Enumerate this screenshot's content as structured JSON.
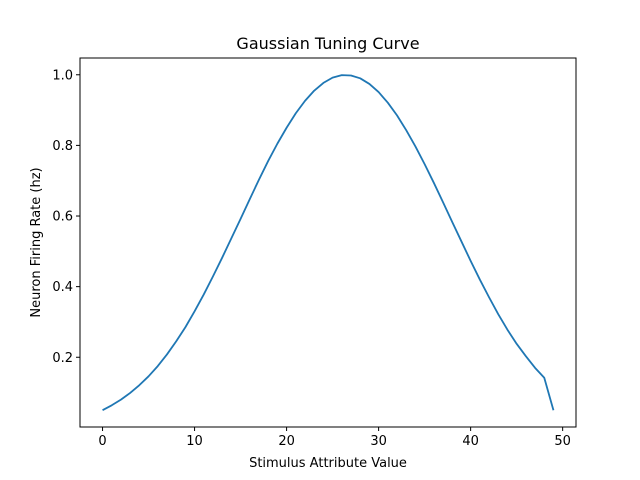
{
  "chart_data": {
    "type": "line",
    "title": "Gaussian Tuning Curve",
    "xlabel": "Stimulus Attribute Value",
    "ylabel": "Neuron Firing Rate (hz)",
    "xlim": [
      -2.45,
      51.45
    ],
    "ylim": [
      0.0025,
      1.0475
    ],
    "xticks": [
      0,
      10,
      20,
      30,
      40,
      50
    ],
    "yticks": [
      0.2,
      0.4,
      0.6,
      0.8,
      1.0
    ],
    "xtick_labels": [
      "0",
      "10",
      "20",
      "30",
      "40",
      "50"
    ],
    "ytick_labels": [
      "0.2",
      "0.4",
      "0.6",
      "0.8",
      "1.0"
    ],
    "grid": false,
    "legend": "none",
    "series": [
      {
        "color": "#1f77b4",
        "x": [
          0,
          1,
          2,
          3,
          4,
          5,
          6,
          7,
          8,
          9,
          10,
          11,
          12,
          13,
          14,
          15,
          16,
          17,
          18,
          19,
          20,
          21,
          22,
          23,
          24,
          25,
          26,
          27,
          28,
          29,
          30,
          31,
          32,
          33,
          34,
          35,
          36,
          37,
          38,
          39,
          40,
          41,
          42,
          43,
          44,
          45,
          46,
          47,
          48,
          49
        ],
        "y": [
          0.05,
          0.064,
          0.08,
          0.099,
          0.121,
          0.146,
          0.175,
          0.208,
          0.245,
          0.285,
          0.33,
          0.378,
          0.429,
          0.482,
          0.537,
          0.592,
          0.648,
          0.703,
          0.756,
          0.805,
          0.85,
          0.891,
          0.926,
          0.955,
          0.977,
          0.992,
          0.999,
          0.998,
          0.99,
          0.974,
          0.951,
          0.921,
          0.885,
          0.843,
          0.797,
          0.747,
          0.694,
          0.639,
          0.583,
          0.528,
          0.473,
          0.42,
          0.37,
          0.322,
          0.278,
          0.238,
          0.203,
          0.17,
          0.142,
          0.05
        ]
      }
    ]
  }
}
